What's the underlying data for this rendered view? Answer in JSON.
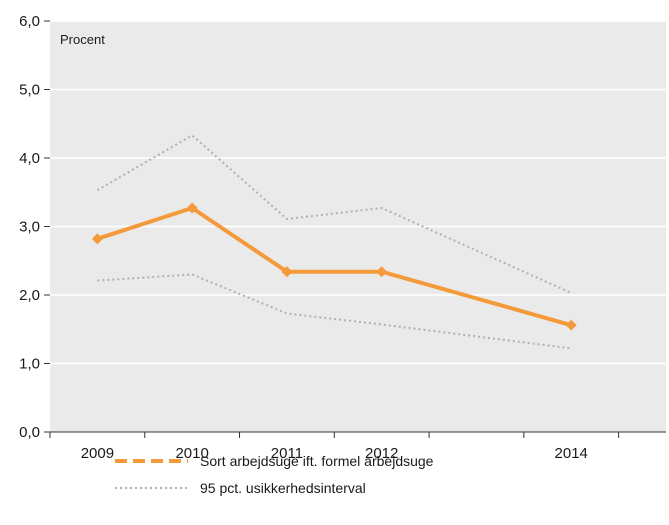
{
  "chart_data": {
    "type": "line",
    "unit_label": "Procent",
    "x": [
      2009,
      2010,
      2011,
      2012,
      2014
    ],
    "x_ticks": [
      2009,
      2010,
      2011,
      2012,
      2013,
      2014,
      2015
    ],
    "x_tick_labels": [
      "2009",
      "2010",
      "2011",
      "2012",
      "",
      "2014",
      ""
    ],
    "xlim": [
      2008.5,
      2015
    ],
    "ylim": [
      0,
      6
    ],
    "y_ticks": [
      0,
      1,
      2,
      3,
      4,
      5,
      6
    ],
    "y_tick_labels": [
      "0,0",
      "1,0",
      "2,0",
      "3,0",
      "4,0",
      "5,0",
      "6,0"
    ],
    "grid": "horizontal",
    "plot_background": "#eaeaea",
    "series": [
      {
        "name": "Sort arbejdsuge ift. formel arbejdsuge",
        "color": "#f49a3a",
        "style": "solid-diamond-markers",
        "values": [
          2.82,
          3.27,
          2.34,
          2.34,
          1.56
        ]
      }
    ],
    "interval": {
      "name": "95 pct. usikkerhedsinterval",
      "color": "#b0b0b0",
      "upper": [
        3.53,
        4.33,
        3.11,
        3.27,
        2.03
      ],
      "lower": [
        2.21,
        2.3,
        1.73,
        1.57,
        1.22
      ]
    },
    "legend_position": "bottom"
  }
}
